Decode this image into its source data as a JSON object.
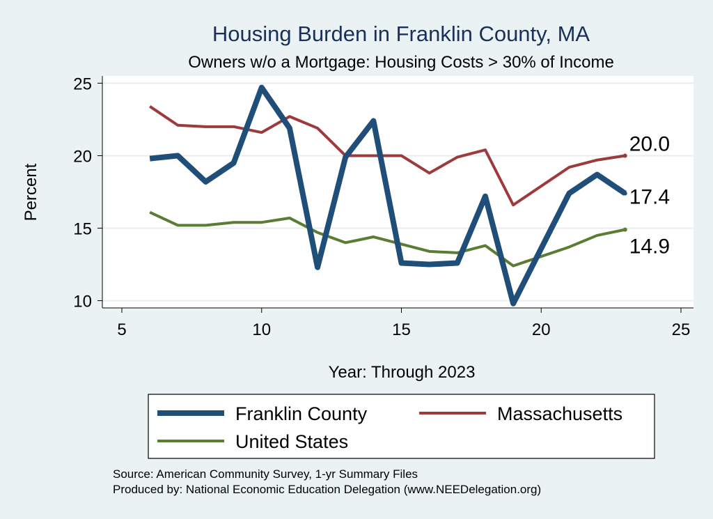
{
  "chart_data": {
    "type": "line",
    "title": "Housing Burden in Franklin County, MA",
    "subtitle": "Owners w/o a Mortgage: Housing Costs > 30% of Income",
    "xlabel": "Year: Through 2023",
    "ylabel": "Percent",
    "xlim": [
      5,
      25
    ],
    "ylim": [
      9.5,
      25.5
    ],
    "xticks": [
      5,
      10,
      15,
      20,
      25
    ],
    "yticks": [
      10,
      15,
      20,
      25
    ],
    "grid": true,
    "legend_placement": "bottom",
    "x": [
      6,
      7,
      8,
      9,
      10,
      11,
      12,
      13,
      14,
      15,
      16,
      17,
      18,
      19,
      21,
      22,
      23
    ],
    "series": [
      {
        "name": "Franklin County",
        "color": "#1f4e79",
        "width": "thick",
        "values": [
          19.8,
          20.0,
          18.2,
          19.5,
          24.7,
          21.9,
          12.3,
          19.9,
          22.4,
          12.6,
          12.5,
          12.6,
          17.2,
          9.8,
          17.4,
          18.7,
          17.4
        ],
        "end_label": "17.4"
      },
      {
        "name": "Massachusetts",
        "color": "#9c3a3c",
        "width": "medium",
        "values": [
          23.4,
          22.1,
          22.0,
          22.0,
          21.6,
          22.7,
          21.9,
          20.0,
          20.0,
          20.0,
          18.8,
          19.9,
          20.4,
          16.6,
          19.2,
          19.7,
          20.0
        ],
        "end_label": "20.0"
      },
      {
        "name": "United States",
        "color": "#5b7d33",
        "width": "medium",
        "values": [
          16.1,
          15.2,
          15.2,
          15.4,
          15.4,
          15.7,
          14.7,
          14.0,
          14.4,
          13.9,
          13.4,
          13.3,
          13.8,
          12.4,
          13.7,
          14.5,
          14.9
        ],
        "end_label": "14.9"
      }
    ]
  },
  "notes": {
    "source": "Source: American Community Survey, 1-yr Summary Files",
    "produced_by": "Produced by: National Economic Education Delegation (www.NEEDelegation.org)"
  }
}
